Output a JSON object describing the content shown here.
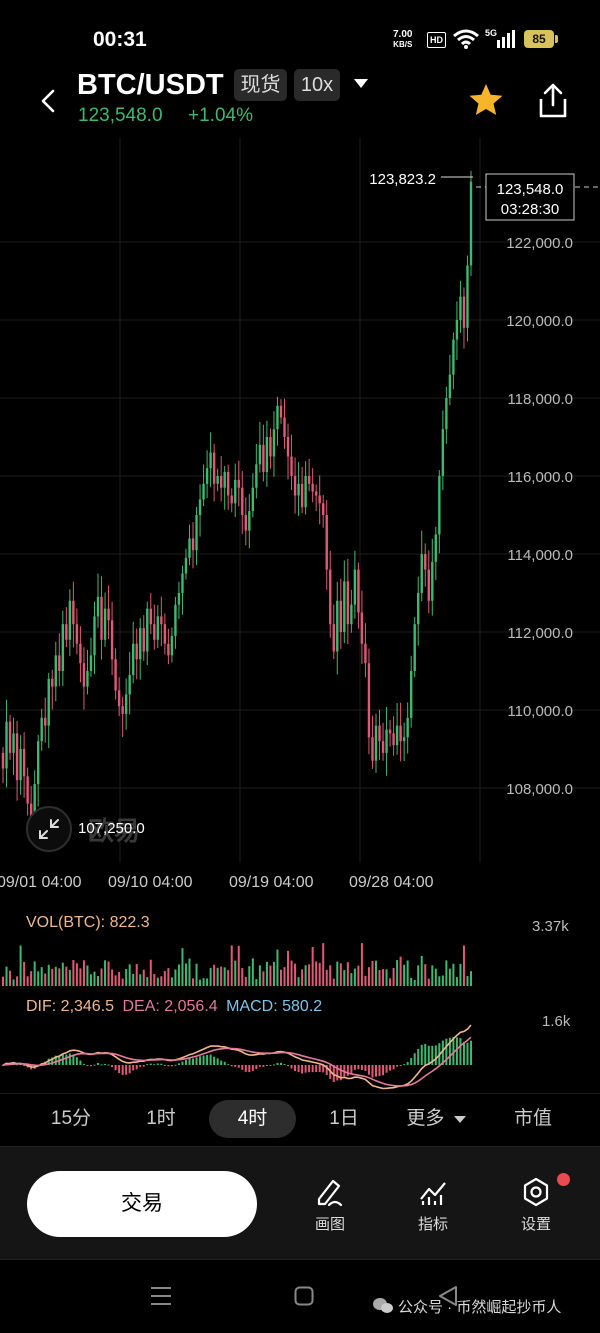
{
  "status_bar": {
    "time": "00:31",
    "net_speed_value": "7.00",
    "net_speed_unit": "KB/S",
    "hd": "HD",
    "network": "5G",
    "battery": "85"
  },
  "header": {
    "pair": "BTC/USDT",
    "market_type": "现货",
    "leverage": "10x",
    "price": "123,548.0",
    "change": "+1.04%"
  },
  "chart": {
    "high_marker": "123,823.2",
    "current_price": "123,548.0",
    "countdown": "03:28:30",
    "low_marker": "107,250.0",
    "watermark": "欧易",
    "price_ticks": [
      "122,000.0",
      "120,000.0",
      "118,000.0",
      "116,000.0",
      "114,000.0",
      "112,000.0",
      "110,000.0",
      "108,000.0"
    ],
    "date_ticks": [
      "09/01 04:00",
      "09/10 04:00",
      "09/19 04:00",
      "09/28 04:00"
    ]
  },
  "volume": {
    "label": "VOL(BTC): 822.3",
    "max": "3.37k"
  },
  "macd": {
    "dif": "DIF: 2,346.5",
    "dea": "DEA: 2,056.4",
    "macd": "MACD: 580.2",
    "max": "1.6k"
  },
  "intervals": [
    "15分",
    "1时",
    "4时",
    "1日",
    "更多",
    "市值"
  ],
  "active_interval": "4时",
  "actions": {
    "trade": "交易",
    "draw": "画图",
    "indicators": "指标",
    "settings": "设置"
  },
  "watermark_text": "公众号 · 币然崛起抄币人",
  "colors": {
    "up": "#3dba6f",
    "down": "#e05a77",
    "accent_star": "#f7b52c",
    "dif_line": "#f0b88c",
    "dea_line": "#e47a9c",
    "macd_text": "#7fc4e8"
  },
  "chart_data": {
    "type": "candlestick",
    "series_type": "line",
    "symbol": "BTC/USDT",
    "interval": "4时",
    "ylim": [
      107000,
      124000
    ],
    "y_ticks": [
      108000,
      110000,
      112000,
      114000,
      116000,
      118000,
      120000,
      122000
    ],
    "x_ticks": [
      "09/01 04:00",
      "09/10 04:00",
      "09/19 04:00",
      "09/28 04:00"
    ],
    "closes": [
      108500,
      109700,
      108900,
      109400,
      108200,
      109000,
      108300,
      107600,
      107250,
      108100,
      109200,
      109800,
      109600,
      110800,
      110600,
      111400,
      111000,
      112200,
      111800,
      112800,
      112200,
      111700,
      111200,
      110600,
      111000,
      111400,
      112400,
      112900,
      111800,
      112600,
      112300,
      111300,
      110500,
      110100,
      109900,
      110400,
      110900,
      111700,
      111300,
      112100,
      111500,
      112600,
      112200,
      111800,
      112400,
      112200,
      111700,
      111400,
      111900,
      112700,
      113000,
      113500,
      113900,
      114400,
      114100,
      115000,
      115400,
      115800,
      116200,
      116600,
      115800,
      116000,
      115700,
      116100,
      115500,
      115300,
      115900,
      115700,
      115000,
      114600,
      115100,
      115700,
      116300,
      116800,
      116100,
      117000,
      116500,
      117200,
      117800,
      117500,
      117000,
      116500,
      116000,
      115500,
      115800,
      115200,
      116000,
      115800,
      115600,
      115500,
      115300,
      115000,
      113600,
      112200,
      111500,
      112800,
      112000,
      113300,
      112200,
      112700,
      113600,
      112500,
      111700,
      111200,
      109300,
      108700,
      109600,
      109200,
      108900,
      109500,
      109400,
      109100,
      109600,
      109200,
      109300,
      109800,
      111000,
      112200,
      113000,
      114000,
      113600,
      112800,
      113800,
      114500,
      116000,
      117200,
      118000,
      118600,
      119500,
      120000,
      120600,
      119800,
      121400,
      123548
    ],
    "high": 123823.2,
    "low": 107250.0,
    "last": 123548.0,
    "volume_max": 3370,
    "volume_last": 822.3,
    "macd": {
      "dif": 2346.5,
      "dea": 2056.4,
      "macd": 580.2,
      "axis_max": 1600
    }
  }
}
